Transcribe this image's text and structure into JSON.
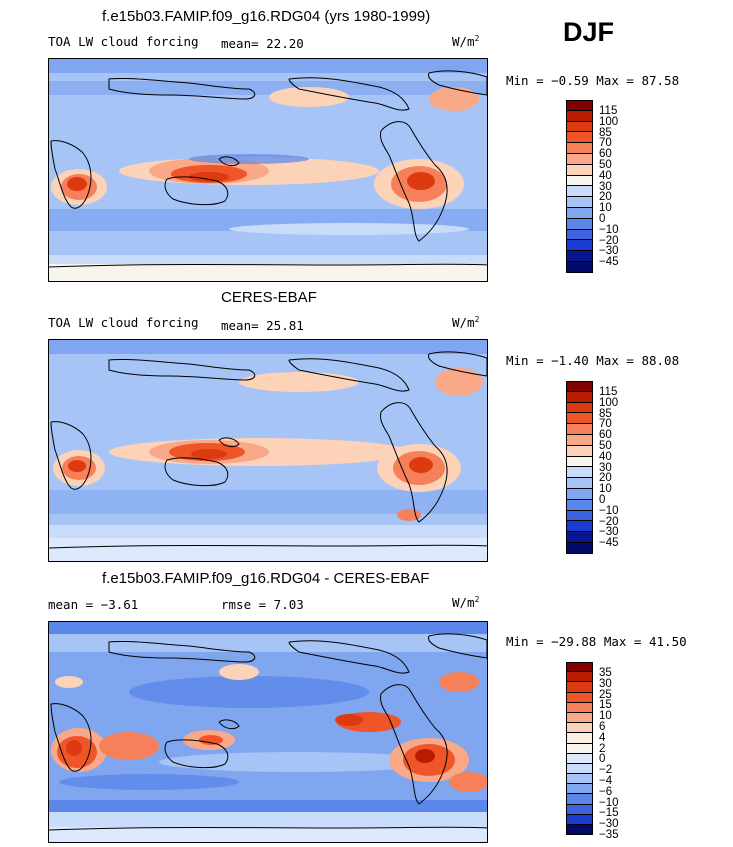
{
  "season_label": "DJF",
  "units_label": "W/m",
  "units_exponent": "2",
  "panels": [
    {
      "title": "f.e15b03.FAMIP.f09_g16.RDG04 (yrs 1980-1999)",
      "left_label": "TOA LW cloud forcing",
      "stat1": "mean=  22.20",
      "stat2": "",
      "minmax": "Min =  −0.59 Max =  87.58",
      "colorbar_labels": [
        "115",
        "100",
        "85",
        "70",
        "60",
        "50",
        "40",
        "30",
        "20",
        "10",
        "0",
        "−10",
        "−20",
        "−30",
        "−45"
      ]
    },
    {
      "title": "CERES-EBAF",
      "left_label": "TOA LW cloud forcing",
      "stat1": "mean=  25.81",
      "stat2": "",
      "minmax": "Min =  −1.40 Max =  88.08",
      "colorbar_labels": [
        "115",
        "100",
        "85",
        "70",
        "60",
        "50",
        "40",
        "30",
        "20",
        "10",
        "0",
        "−10",
        "−20",
        "−30",
        "−45"
      ]
    },
    {
      "title": "f.e15b03.FAMIP.f09_g16.RDG04 - CERES-EBAF",
      "left_label": "mean =  −3.61",
      "stat1": "rmse =   7.03",
      "stat2": "",
      "minmax": "Min = −29.88 Max =  41.50",
      "colorbar_labels": [
        "35",
        "30",
        "25",
        "15",
        "10",
        "6",
        "4",
        "2",
        "0",
        "−2",
        "−4",
        "−6",
        "−10",
        "−15",
        "−30",
        "−35"
      ]
    }
  ],
  "colors": {
    "abs_scale": [
      "#800000",
      "#b81b00",
      "#dd3a12",
      "#f0552a",
      "#f5805a",
      "#f9a888",
      "#fcd3b9",
      "#f7f5ee",
      "#c8dcfa",
      "#a6c4f6",
      "#81a6f0",
      "#5b87ea",
      "#3d63de",
      "#1c3bd0",
      "#0a1590",
      "#020a6a"
    ],
    "diff_scale": [
      "#800000",
      "#b81b00",
      "#dd3a12",
      "#f0552a",
      "#f5805a",
      "#f9a888",
      "#fcd3b9",
      "#fbeee3",
      "#f7f5ee",
      "#dce8fb",
      "#c8dcfa",
      "#a6c4f6",
      "#81a6f0",
      "#5b87ea",
      "#3d63de",
      "#1c3bd0",
      "#020a6a"
    ]
  }
}
